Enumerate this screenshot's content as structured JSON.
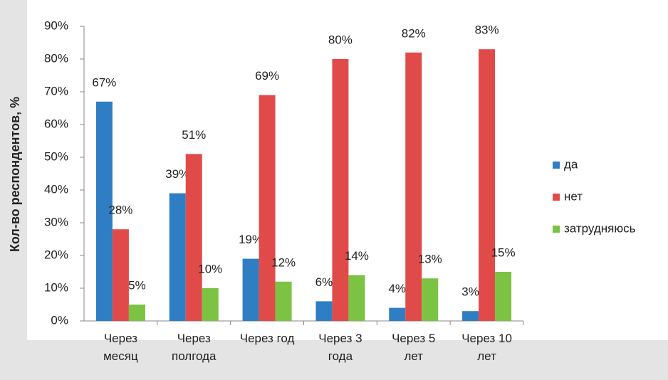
{
  "chart_data": {
    "type": "bar",
    "y_label": "Кол-во респондентов, %",
    "categories": [
      "Через месяц",
      "Через полгода",
      "Через год",
      "Через 3 года",
      "Через 5 лет",
      "Через 10 лет"
    ],
    "series": [
      {
        "name": "да",
        "color": "#2f7ec3",
        "values": [
          67,
          39,
          19,
          6,
          4,
          3
        ],
        "value_labels": [
          "67%",
          "39%",
          "19%",
          "6%",
          "4%",
          "3%"
        ]
      },
      {
        "name": "нет",
        "color": "#e04b49",
        "values": [
          28,
          51,
          69,
          80,
          82,
          83
        ],
        "value_labels": [
          "28%",
          "51%",
          "69%",
          "80%",
          "82%",
          "83%"
        ]
      },
      {
        "name": "затрудняюсь",
        "color": "#7cc243",
        "values": [
          5,
          10,
          12,
          14,
          13,
          15
        ],
        "value_labels": [
          "5%",
          "10%",
          "12%",
          "14%",
          "13%",
          "15%"
        ]
      }
    ],
    "ylim": [
      0,
      90
    ],
    "yticks": [
      {
        "value": 0,
        "label": "0%"
      },
      {
        "value": 10,
        "label": "10%"
      },
      {
        "value": 20,
        "label": "20%"
      },
      {
        "value": 30,
        "label": "30%"
      },
      {
        "value": 40,
        "label": "40%"
      },
      {
        "value": 50,
        "label": "50%"
      },
      {
        "value": 60,
        "label": "60%"
      },
      {
        "value": 70,
        "label": "70%"
      },
      {
        "value": 80,
        "label": "80%"
      },
      {
        "value": 90,
        "label": "90%"
      }
    ],
    "legend": "right"
  }
}
